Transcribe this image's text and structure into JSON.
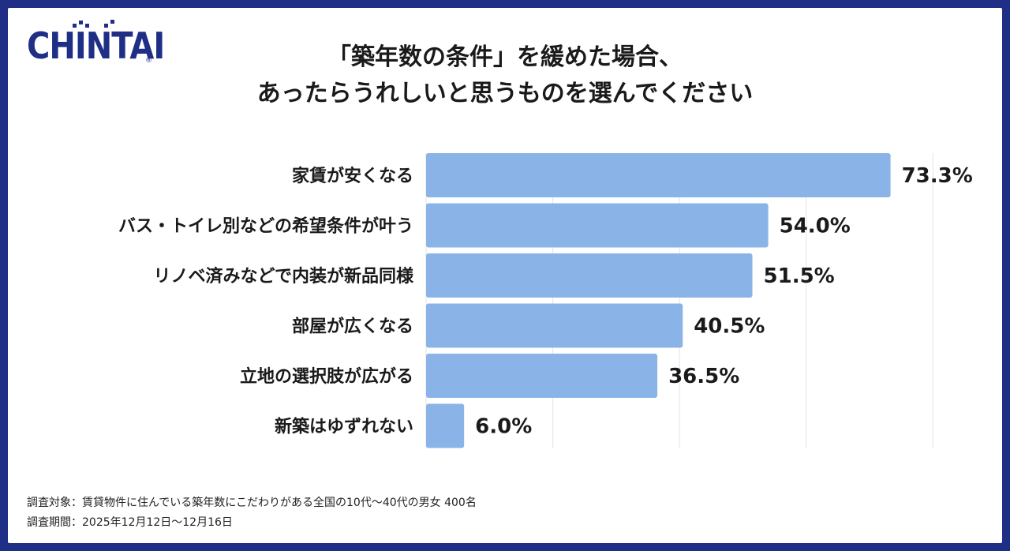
{
  "logo": {
    "text": "CHINTAI",
    "reg": "®"
  },
  "title_line1": "「築年数の条件」を緩めた場合、",
  "title_line2": "あったらうれしいと思うものを選んでください",
  "colors": {
    "bar": "#8ab4e8",
    "frame": "#1f2f86",
    "grid": "#e3e3e3"
  },
  "chart_data": {
    "type": "bar",
    "orientation": "horizontal",
    "categories": [
      "家賃が安くなる",
      "バス・トイレ別などの希望条件が叶う",
      "リノベ済みなどで内装が新品同様",
      "部屋が広くなる",
      "立地の選択肢が広がる",
      "新築はゆずれない"
    ],
    "values": [
      73.3,
      54.0,
      51.5,
      40.5,
      36.5,
      6.0
    ],
    "value_labels": [
      "73.3%",
      "54.0%",
      "51.5%",
      "40.5%",
      "36.5%",
      "6.0%"
    ],
    "xlim": [
      0,
      80
    ],
    "grid": true
  },
  "footnote": {
    "line1": "調査対象：賃貸物件に住んでいる築年数にこだわりがある全国の10代〜40代の男女 400名",
    "line2": "調査期間：2025年12月12日〜12月16日"
  }
}
